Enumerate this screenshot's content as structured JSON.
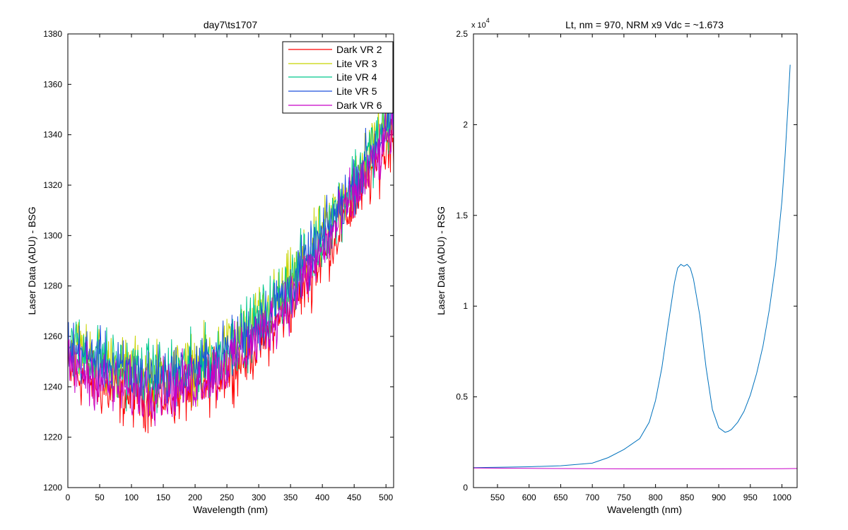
{
  "chart_data": [
    {
      "type": "line",
      "title": "day7\\ts1707",
      "xlabel": "Wavelength (nm)",
      "ylabel": "Laser Data (ADU) - BSG",
      "xlim": [
        0,
        512
      ],
      "ylim": [
        1200,
        1380
      ],
      "xticks": [
        0,
        50,
        100,
        150,
        200,
        250,
        300,
        350,
        400,
        450,
        500
      ],
      "yticks": [
        1200,
        1220,
        1240,
        1260,
        1280,
        1300,
        1320,
        1340,
        1360,
        1380
      ],
      "grid": false,
      "legend": "top-right",
      "series": [
        {
          "name": "Dark VR 2",
          "color": "#ff0000",
          "x": [
            0,
            25,
            50,
            75,
            100,
            125,
            150,
            175,
            200,
            225,
            250,
            275,
            300,
            325,
            350,
            375,
            400,
            425,
            450,
            475,
            500,
            512
          ],
          "values": [
            1246,
            1243,
            1240,
            1237,
            1236,
            1235,
            1236,
            1237,
            1239,
            1242,
            1246,
            1251,
            1257,
            1264,
            1272,
            1281,
            1291,
            1302,
            1313,
            1323,
            1334,
            1340
          ],
          "noise": 9
        },
        {
          "name": "Lite VR 3",
          "color": "#c8d400",
          "x": [
            0,
            25,
            50,
            75,
            100,
            125,
            150,
            175,
            200,
            225,
            250,
            275,
            300,
            325,
            350,
            375,
            400,
            425,
            450,
            475,
            500,
            512
          ],
          "values": [
            1257,
            1254,
            1251,
            1248,
            1246,
            1245,
            1245,
            1246,
            1248,
            1251,
            1255,
            1260,
            1266,
            1273,
            1281,
            1290,
            1300,
            1311,
            1322,
            1333,
            1344,
            1350
          ],
          "noise": 10
        },
        {
          "name": "Lite VR 4",
          "color": "#00c88c",
          "x": [
            0,
            25,
            50,
            75,
            100,
            125,
            150,
            175,
            200,
            225,
            250,
            275,
            300,
            325,
            350,
            375,
            400,
            425,
            450,
            475,
            500,
            512
          ],
          "values": [
            1257,
            1254,
            1251,
            1248,
            1246,
            1245,
            1245,
            1246,
            1248,
            1251,
            1255,
            1260,
            1266,
            1273,
            1281,
            1290,
            1300,
            1311,
            1322,
            1333,
            1344,
            1350
          ],
          "noise": 10
        },
        {
          "name": "Lite VR 5",
          "color": "#1e50dc",
          "x": [
            0,
            25,
            50,
            75,
            100,
            125,
            150,
            175,
            200,
            225,
            250,
            275,
            300,
            325,
            350,
            375,
            400,
            425,
            450,
            475,
            500,
            512
          ],
          "values": [
            1256,
            1253,
            1250,
            1247,
            1245,
            1244,
            1244,
            1245,
            1247,
            1250,
            1254,
            1259,
            1265,
            1272,
            1280,
            1289,
            1299,
            1310,
            1321,
            1332,
            1343,
            1349
          ],
          "noise": 9
        },
        {
          "name": "Dark VR 6",
          "color": "#c800c8",
          "x": [
            0,
            25,
            50,
            75,
            100,
            125,
            150,
            175,
            200,
            225,
            250,
            275,
            300,
            325,
            350,
            375,
            400,
            425,
            450,
            475,
            500,
            512
          ],
          "values": [
            1249,
            1246,
            1243,
            1240,
            1239,
            1238,
            1239,
            1240,
            1242,
            1245,
            1249,
            1254,
            1260,
            1267,
            1275,
            1284,
            1294,
            1305,
            1316,
            1326,
            1337,
            1343
          ],
          "noise": 9
        }
      ]
    },
    {
      "type": "line",
      "title": "Lt, nm = 970, NRM x9 Vdc = ~1.673",
      "xlabel": "Wavelength (nm)",
      "ylabel": "Laser Data (ADU) - RSG",
      "y_multiplier_label": "x 10",
      "y_multiplier_exponent": "4",
      "xlim": [
        512,
        1024
      ],
      "ylim": [
        0,
        25000
      ],
      "xticks": [
        550,
        600,
        650,
        700,
        750,
        800,
        850,
        900,
        950,
        1000
      ],
      "ytick_values": [
        0,
        5000,
        10000,
        15000,
        20000,
        25000
      ],
      "ytick_labels": [
        "0",
        "0.5",
        "1",
        "1.5",
        "2",
        "2.5"
      ],
      "grid": false,
      "series": [
        {
          "color": "#0072bd",
          "x": [
            512,
            550,
            600,
            650,
            700,
            725,
            750,
            775,
            790,
            800,
            810,
            820,
            830,
            835,
            840,
            845,
            850,
            855,
            860,
            870,
            880,
            890,
            900,
            910,
            915,
            920,
            930,
            940,
            950,
            960,
            970,
            980,
            990,
            1000,
            1005,
            1010,
            1013
          ],
          "values": [
            1100,
            1120,
            1150,
            1200,
            1350,
            1650,
            2100,
            2700,
            3600,
            4800,
            6600,
            9000,
            11300,
            12100,
            12300,
            12200,
            12300,
            12100,
            11500,
            9500,
            6600,
            4300,
            3300,
            3050,
            3100,
            3200,
            3600,
            4200,
            5100,
            6300,
            7800,
            9800,
            12300,
            15800,
            18300,
            21300,
            23300
          ]
        },
        {
          "color": "#c800c8",
          "x": [
            512,
            600,
            700,
            800,
            900,
            1000,
            1024
          ],
          "values": [
            1080,
            1060,
            1040,
            1030,
            1030,
            1040,
            1050
          ]
        }
      ]
    }
  ]
}
